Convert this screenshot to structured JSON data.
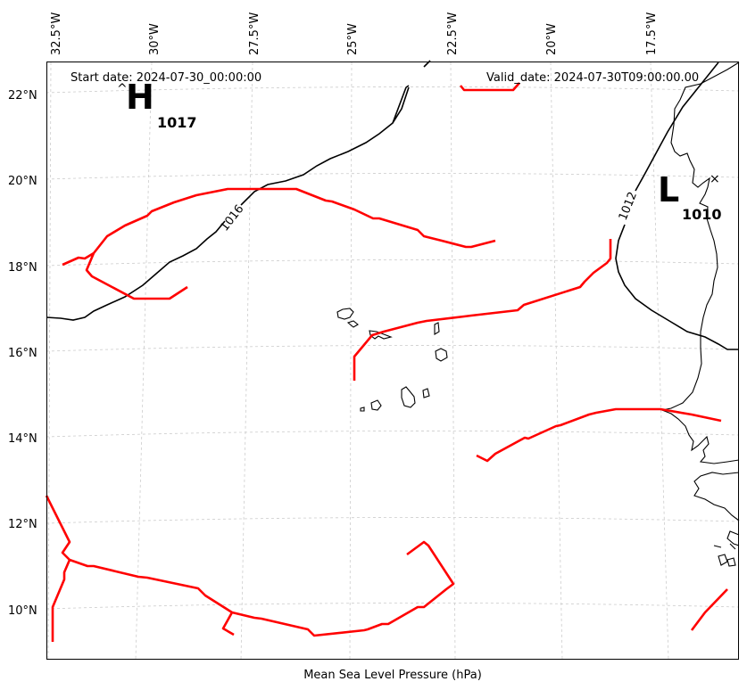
{
  "header": {
    "start_date": "Start date: 2024-07-30_00:00:00",
    "valid_date": "Valid_date: 2024-07-30T09:00:00.00"
  },
  "x_axis_label": "Mean Sea Level Pressure (hPa)",
  "lon_ticks": [
    "32.5°W",
    "30°W",
    "27.5°W",
    "25°W",
    "22.5°W",
    "20°W",
    "17.5°W"
  ],
  "lat_ticks": [
    "22°N",
    "20°N",
    "18°N",
    "16°N",
    "14°N",
    "12°N",
    "10°N"
  ],
  "pressure_centers": [
    {
      "letter": "H",
      "value": "1017"
    },
    {
      "letter": "L",
      "value": "1010"
    }
  ],
  "isobar_labels": [
    "1016",
    "1012"
  ],
  "colors": {
    "isobar": "#000000",
    "front": "#ff0000",
    "grid": "#cccccc",
    "coastline": "#000000"
  }
}
